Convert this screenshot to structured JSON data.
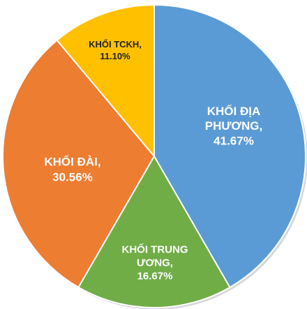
{
  "chart_data": {
    "type": "pie",
    "categories": [
      "KHỐI ĐỊA PHƯƠNG,",
      "KHỐI TRUNG ƯƠNG,",
      "KHỐI ĐÀI,",
      "KHỐI TCKH,"
    ],
    "values": [
      41.67,
      16.67,
      30.56,
      11.1
    ],
    "value_labels": [
      "41.67%",
      "16.67%",
      "30.56%",
      "11.10%"
    ],
    "colors": [
      "#5b9bd5",
      "#70ad47",
      "#ed7d31",
      "#ffc000"
    ]
  }
}
